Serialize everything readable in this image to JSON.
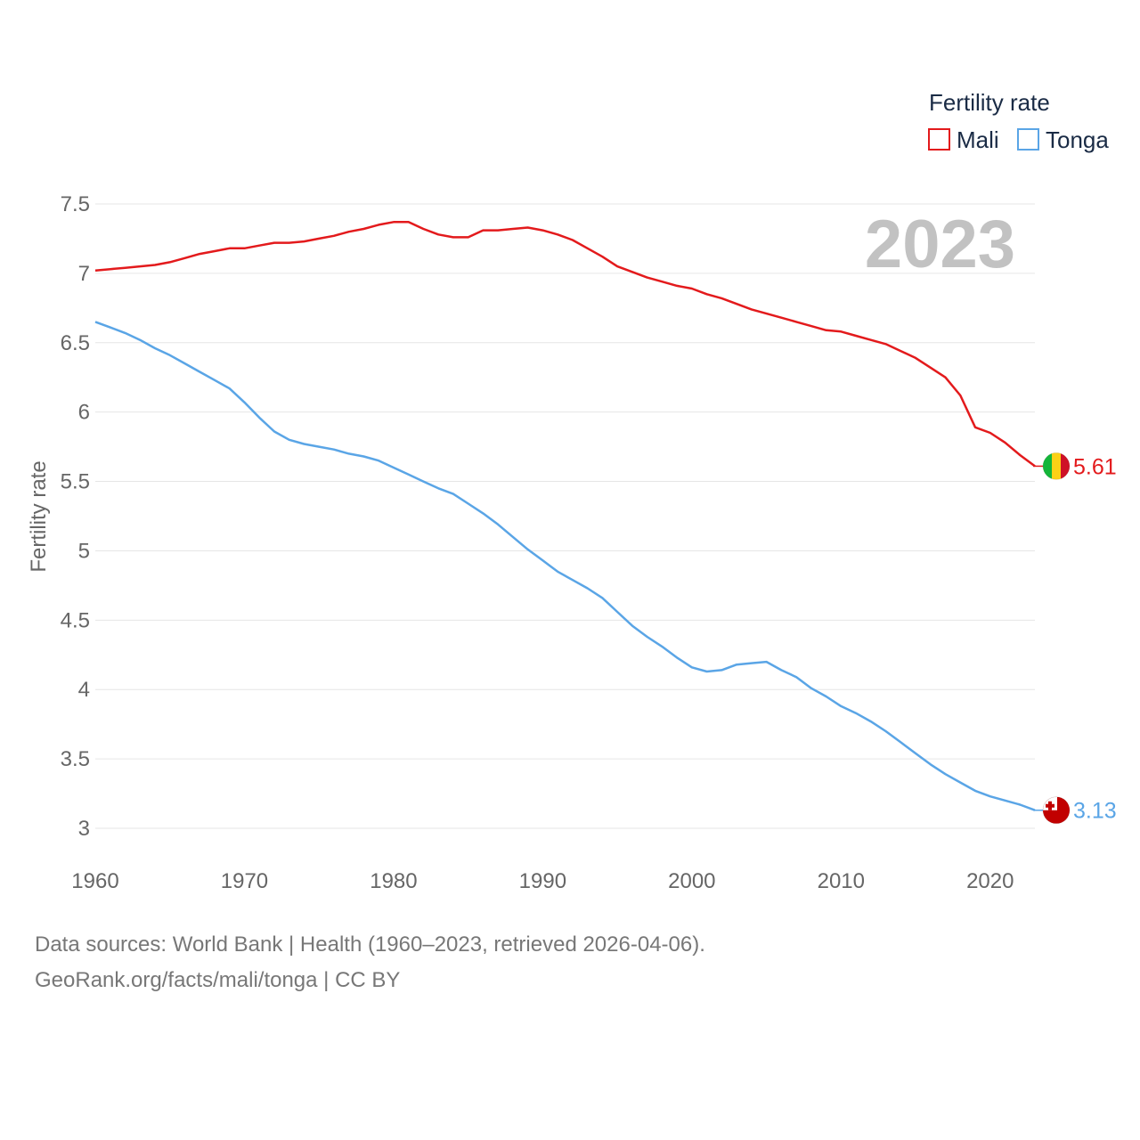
{
  "chart_data": {
    "type": "line",
    "ylabel": "Fertility rate",
    "xlabel": "",
    "xlim": [
      1960,
      2023
    ],
    "ylim": [
      3,
      7.5
    ],
    "x_ticks": [
      "1960",
      "1970",
      "1980",
      "1990",
      "2000",
      "2010",
      "2020"
    ],
    "y_ticks": [
      "7.5",
      "7",
      "6.5",
      "6",
      "5.5",
      "5",
      "4.5",
      "4",
      "3.5",
      "3"
    ],
    "legend": {
      "title": "Fertility rate",
      "position": "top-right",
      "entries": [
        "Mali",
        "Tonga"
      ]
    },
    "year_label": "2023",
    "x": [
      1960,
      1961,
      1962,
      1963,
      1964,
      1965,
      1966,
      1967,
      1968,
      1969,
      1970,
      1971,
      1972,
      1973,
      1974,
      1975,
      1976,
      1977,
      1978,
      1979,
      1980,
      1981,
      1982,
      1983,
      1984,
      1985,
      1986,
      1987,
      1988,
      1989,
      1990,
      1991,
      1992,
      1993,
      1994,
      1995,
      1996,
      1997,
      1998,
      1999,
      2000,
      2001,
      2002,
      2003,
      2004,
      2005,
      2006,
      2007,
      2008,
      2009,
      2010,
      2011,
      2012,
      2013,
      2014,
      2015,
      2016,
      2017,
      2018,
      2019,
      2020,
      2021,
      2022,
      2023
    ],
    "series": [
      {
        "name": "Mali",
        "color": "#e31a1c",
        "end_label": "5.61",
        "flag": "mali-flag-icon",
        "values": [
          7.02,
          7.03,
          7.04,
          7.05,
          7.06,
          7.08,
          7.11,
          7.14,
          7.16,
          7.18,
          7.18,
          7.2,
          7.22,
          7.22,
          7.23,
          7.25,
          7.27,
          7.3,
          7.32,
          7.35,
          7.37,
          7.37,
          7.32,
          7.28,
          7.26,
          7.26,
          7.31,
          7.31,
          7.32,
          7.33,
          7.31,
          7.28,
          7.24,
          7.18,
          7.12,
          7.05,
          7.01,
          6.97,
          6.94,
          6.91,
          6.89,
          6.85,
          6.82,
          6.78,
          6.74,
          6.71,
          6.68,
          6.65,
          6.62,
          6.59,
          6.58,
          6.55,
          6.52,
          6.49,
          6.44,
          6.39,
          6.32,
          6.25,
          6.12,
          5.89,
          5.85,
          5.78,
          5.69,
          5.61
        ]
      },
      {
        "name": "Tonga",
        "color": "#5aa5e6",
        "end_label": "3.13",
        "flag": "tonga-flag-icon",
        "values": [
          6.65,
          6.61,
          6.57,
          6.52,
          6.46,
          6.41,
          6.35,
          6.29,
          6.23,
          6.17,
          6.07,
          5.96,
          5.86,
          5.8,
          5.77,
          5.75,
          5.73,
          5.7,
          5.68,
          5.65,
          5.6,
          5.55,
          5.5,
          5.45,
          5.41,
          5.34,
          5.27,
          5.19,
          5.1,
          5.01,
          4.93,
          4.85,
          4.79,
          4.73,
          4.66,
          4.56,
          4.46,
          4.38,
          4.31,
          4.23,
          4.16,
          4.13,
          4.14,
          4.18,
          4.19,
          4.2,
          4.14,
          4.09,
          4.01,
          3.95,
          3.88,
          3.83,
          3.77,
          3.7,
          3.62,
          3.54,
          3.46,
          3.39,
          3.33,
          3.27,
          3.23,
          3.2,
          3.17,
          3.13
        ]
      }
    ]
  },
  "footer": {
    "line1": "Data sources: World Bank | Health (1960–2023, retrieved 2026-04-06).",
    "line2": "GeoRank.org/facts/mali/tonga | CC BY"
  }
}
